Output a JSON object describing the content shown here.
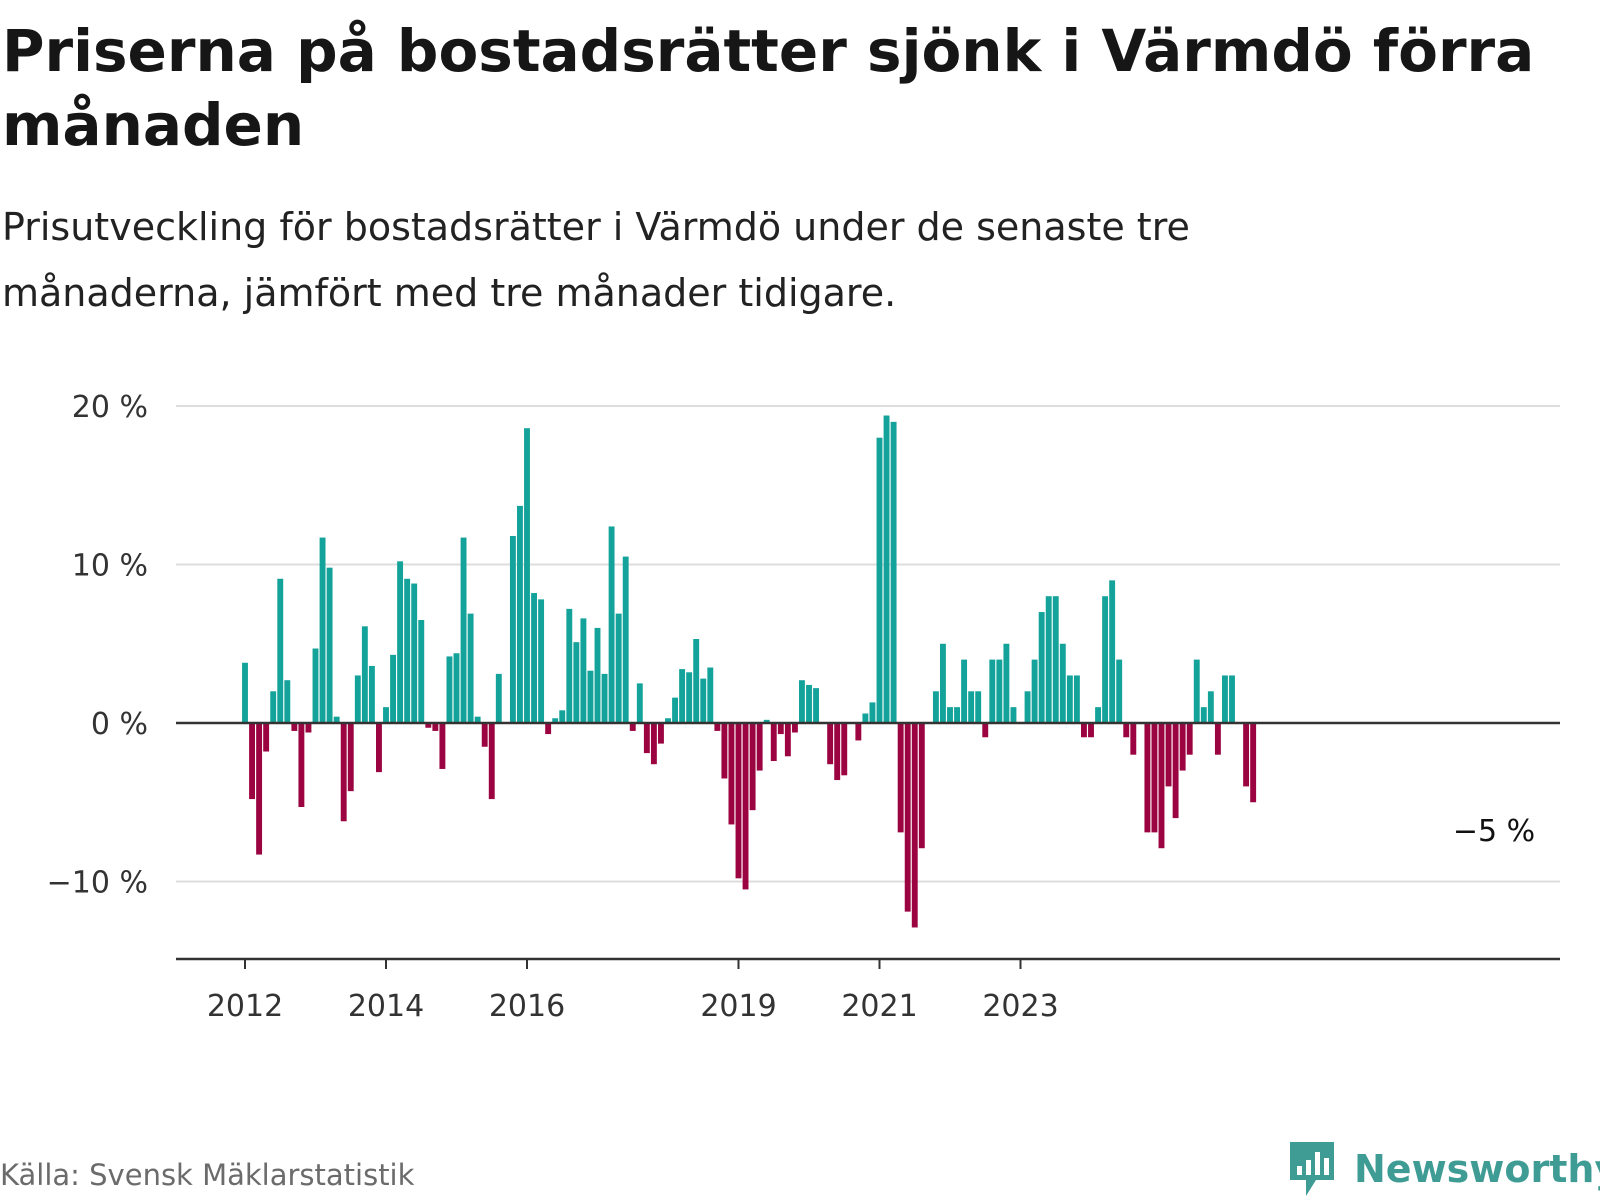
{
  "title": "Priserna på bostadsrätter sjönk i Värmdö förra månaden",
  "subtitle": "Prisutveckling för bostadsrätter i Värmdö under de senaste tre månaderna, jämfört med tre månader tidigare.",
  "source": "Källa: Svensk Mäklarstatistik",
  "brand": {
    "name": "Newsworthy",
    "color": "#3f9c95",
    "icon": "newsworthy-logo-icon"
  },
  "colors": {
    "positive": "#14a39a",
    "negative": "#9b0440",
    "grid": "#dddddd",
    "axis": "#333333"
  },
  "chart_data": {
    "type": "bar",
    "title": "Priserna på bostadsrätter sjönk i Värmdö förra månaden",
    "xlabel": "",
    "ylabel": "",
    "ylim": [
      -15,
      21
    ],
    "y_ticks": [
      20,
      10,
      0,
      -10
    ],
    "y_tick_labels": [
      "20 %",
      "10 %",
      "0 %",
      "−10 %"
    ],
    "x_start": "2012-01",
    "x_ticks": [
      {
        "label": "2012",
        "index": 0
      },
      {
        "label": "2014",
        "index": 20
      },
      {
        "label": "2016",
        "index": 40
      },
      {
        "label": "2019",
        "index": 70
      },
      {
        "label": "2021",
        "index": 90
      },
      {
        "label": "2023",
        "index": 110
      }
    ],
    "values": [
      3.8,
      -4.8,
      -8.3,
      -1.8,
      2.0,
      9.1,
      2.7,
      -0.5,
      -5.3,
      -0.6,
      4.7,
      11.7,
      9.8,
      0.4,
      -6.2,
      -4.3,
      3.0,
      6.1,
      3.6,
      -3.1,
      1.0,
      4.3,
      10.2,
      9.1,
      8.8,
      6.5,
      -0.3,
      -0.5,
      -2.9,
      4.2,
      4.4,
      11.7,
      6.9,
      0.4,
      -1.5,
      -4.8,
      3.1,
      0.0,
      11.8,
      13.7,
      18.6,
      8.2,
      7.8,
      -0.7,
      0.3,
      0.8,
      7.2,
      5.1,
      6.6,
      3.3,
      6.0,
      3.1,
      12.4,
      6.9,
      10.5,
      -0.5,
      2.5,
      -1.9,
      -2.6,
      -1.3,
      0.3,
      1.6,
      3.4,
      3.2,
      5.3,
      2.8,
      3.5,
      -0.5,
      -3.5,
      -6.4,
      -9.8,
      -10.5,
      -5.5,
      -3.0,
      0.2,
      -2.4,
      -0.7,
      -2.1,
      -0.6,
      2.7,
      2.4,
      2.2,
      0.0,
      -2.6,
      -3.6,
      -3.3,
      0.0,
      -1.1,
      0.6,
      1.3,
      18.0,
      19.4,
      19.0,
      -6.9,
      -11.9,
      -12.9,
      -7.9,
      0.0,
      2.0,
      5.0,
      1.0,
      1.0,
      4.0,
      2.0,
      2.0,
      -0.9,
      4.0,
      4.0,
      5.0,
      1.0,
      0.0,
      2.0,
      4.0,
      7.0,
      8.0,
      8.0,
      5.0,
      3.0,
      3.0,
      -0.9,
      -0.9,
      1.0,
      8.0,
      9.0,
      4.0,
      -0.9,
      -2.0,
      0.0,
      -6.9,
      -6.9,
      -7.9,
      -4.0,
      -6.0,
      -3.0,
      -2.0,
      4.0,
      1.0,
      2.0,
      -2.0,
      3.0,
      3.0,
      0.0,
      -4.0,
      -5.0
    ],
    "annotation": {
      "text": "−5 %",
      "value": -5.0,
      "index": 143
    }
  }
}
